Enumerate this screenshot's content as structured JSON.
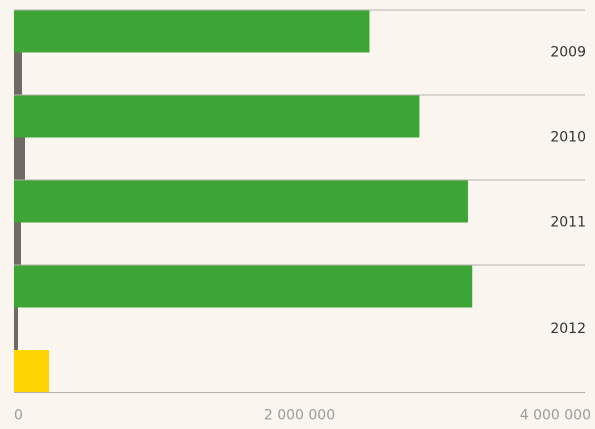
{
  "chart_data": {
    "type": "bar",
    "orientation": "horizontal",
    "categories": [
      "2009",
      "2010",
      "2011",
      "2012"
    ],
    "series": [
      {
        "color": "#3ca535",
        "values": [
          2490000,
          2840000,
          3180000,
          3210000
        ]
      },
      {
        "color": "#6e6a66",
        "values": [
          56000,
          77000,
          49000,
          28000
        ]
      },
      {
        "color": "#ffd400",
        "values": [
          null,
          null,
          null,
          245000
        ]
      }
    ],
    "xlim": [
      0,
      4000000
    ],
    "xticks": [
      0,
      {
        "value": 2000000,
        "label": "2 000 000"
      },
      {
        "value": 4000000,
        "label": "4 000 000"
      }
    ],
    "grid": true
  }
}
